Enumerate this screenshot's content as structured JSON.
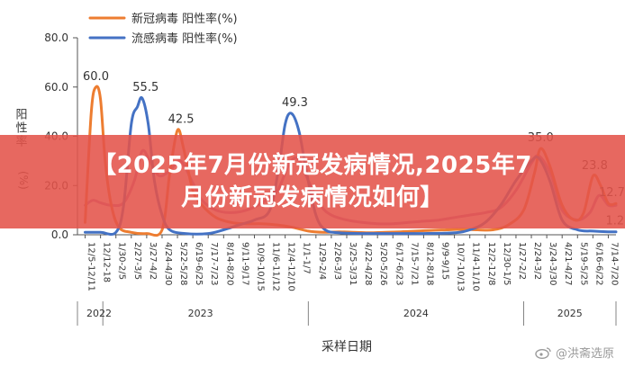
{
  "chart_data": {
    "type": "line",
    "xlabel": "采样日期",
    "ylabel": "阳性率(%)",
    "ylim": [
      0,
      80
    ],
    "yticks": [
      "0.0",
      "20.0",
      "40.0",
      "60.0",
      "80.0"
    ],
    "grid": false,
    "legend_position": "top-left",
    "x_ticks": [
      "12/5-12/11",
      "12/12-18",
      "1/30-2/5",
      "2/27-3/5",
      "3/27-4/2",
      "4/24-4/30",
      "5/22-5/28",
      "6/19-6/25",
      "7/17-7/23",
      "8/14-8/20",
      "9/11-9/17",
      "10/9-10/15",
      "11/6-11/12",
      "12/4-12/10",
      "1/1-1/7",
      "1/29-2/4",
      "2/26-3/3",
      "3/25-3/31",
      "4/22-4/28",
      "5/20-5/26",
      "6/17-6/23",
      "7/15-7/21",
      "8/12-8/18",
      "9/9-9/15",
      "10/7-10/13",
      "11/4-11/10",
      "12/2-12/8",
      "12/30-1/5",
      "1/27-2/2",
      "2/24-3/2",
      "3/24-3/30",
      "4/21-4/27",
      "5/19-5/25",
      "6/16-6/22",
      "7/14-7/20"
    ],
    "years": [
      "2022",
      "2023",
      "2024",
      "2025"
    ],
    "series": [
      {
        "name": "新冠病毒 阳性率(%)",
        "color": "#ED7D31",
        "peak_labels": [
          "60.0",
          "42.5",
          "35.0",
          "23.8",
          "12.7"
        ],
        "points": [
          [
            0,
            5
          ],
          [
            0.4,
            50
          ],
          [
            0.7,
            60
          ],
          [
            1.0,
            55
          ],
          [
            1.3,
            30
          ],
          [
            1.7,
            12
          ],
          [
            2.2,
            3
          ],
          [
            3,
            1
          ],
          [
            4,
            0.5
          ],
          [
            5,
            2
          ],
          [
            5.5,
            25
          ],
          [
            6.0,
            42.5
          ],
          [
            6.4,
            35
          ],
          [
            7,
            18
          ],
          [
            7.6,
            12
          ],
          [
            8.5,
            7
          ],
          [
            9.5,
            5
          ],
          [
            10.5,
            4.5
          ],
          [
            11.5,
            4.5
          ],
          [
            12.5,
            4
          ],
          [
            13.5,
            3
          ],
          [
            14.5,
            1.5
          ],
          [
            15.5,
            1
          ],
          [
            16.5,
            1.2
          ],
          [
            17.5,
            1
          ],
          [
            18.5,
            0.8
          ],
          [
            19.5,
            1
          ],
          [
            20.5,
            1.2
          ],
          [
            21.5,
            1.5
          ],
          [
            22.5,
            1.8
          ],
          [
            23.5,
            2
          ],
          [
            24.5,
            2.2
          ],
          [
            25.5,
            2
          ],
          [
            26.5,
            2
          ],
          [
            27.5,
            4
          ],
          [
            28.5,
            10
          ],
          [
            29.2,
            25
          ],
          [
            29.6,
            35
          ],
          [
            30.2,
            28
          ],
          [
            31.0,
            12
          ],
          [
            31.8,
            6
          ],
          [
            32.4,
            9
          ],
          [
            33.0,
            23.8
          ],
          [
            33.5,
            20
          ],
          [
            34.0,
            12.7
          ],
          [
            34.5,
            12.7
          ]
        ]
      },
      {
        "name": "流感病毒 阳性率(%)",
        "color": "#4472C4",
        "peak_labels": [
          "55.5",
          "49.3",
          "1.2"
        ],
        "points": [
          [
            0,
            1
          ],
          [
            1,
            1
          ],
          [
            2.0,
            1
          ],
          [
            2.5,
            12
          ],
          [
            3.0,
            45
          ],
          [
            3.4,
            52
          ],
          [
            3.7,
            55.5
          ],
          [
            4.1,
            45
          ],
          [
            4.5,
            22
          ],
          [
            5.0,
            8
          ],
          [
            5.5,
            2
          ],
          [
            6.5,
            0.5
          ],
          [
            8,
            0.5
          ],
          [
            9,
            2
          ],
          [
            10,
            4
          ],
          [
            11,
            6
          ],
          [
            12,
            10
          ],
          [
            12.6,
            28
          ],
          [
            13.0,
            45
          ],
          [
            13.4,
            49.3
          ],
          [
            13.9,
            42
          ],
          [
            14.4,
            25
          ],
          [
            15.0,
            8
          ],
          [
            15.6,
            2
          ],
          [
            16.5,
            0.8
          ],
          [
            18,
            0.5
          ],
          [
            20,
            0.5
          ],
          [
            22,
            0.5
          ],
          [
            24,
            0.8
          ],
          [
            25,
            2
          ],
          [
            26,
            5
          ],
          [
            27,
            12
          ],
          [
            28,
            22
          ],
          [
            29,
            30
          ],
          [
            29.5,
            31
          ],
          [
            30.2,
            22
          ],
          [
            31,
            6
          ],
          [
            32,
            2
          ],
          [
            33,
            1.5
          ],
          [
            34,
            1.2
          ],
          [
            34.5,
            1.2
          ]
        ]
      },
      {
        "name": "",
        "color": "#B06BB3",
        "peak_labels": [],
        "points": [
          [
            0,
            12
          ],
          [
            0.5,
            14
          ],
          [
            1,
            13
          ],
          [
            1.7,
            12
          ],
          [
            2.5,
            13
          ],
          [
            3.2,
            22
          ],
          [
            3.7,
            34
          ],
          [
            4.2,
            30
          ],
          [
            4.8,
            24
          ],
          [
            5.5,
            26
          ],
          [
            6.2,
            30
          ],
          [
            7,
            21
          ],
          [
            7.6,
            14
          ],
          [
            8.5,
            10
          ],
          [
            9.5,
            9
          ],
          [
            10.5,
            10
          ],
          [
            11.5,
            13
          ],
          [
            12.5,
            18
          ],
          [
            13.2,
            28
          ],
          [
            13.8,
            31
          ],
          [
            14.5,
            22
          ],
          [
            15.3,
            12
          ],
          [
            16,
            8
          ],
          [
            17,
            6
          ],
          [
            18,
            5
          ],
          [
            19,
            4.5
          ],
          [
            20,
            4.5
          ],
          [
            21,
            5
          ],
          [
            22,
            5.5
          ],
          [
            23,
            6
          ],
          [
            24,
            7
          ],
          [
            25,
            8
          ],
          [
            26,
            9
          ],
          [
            27,
            11
          ],
          [
            28,
            18
          ],
          [
            29,
            29
          ],
          [
            29.5,
            32
          ],
          [
            30.3,
            24
          ],
          [
            31,
            10
          ],
          [
            32,
            6
          ],
          [
            32.8,
            9
          ],
          [
            33.4,
            16
          ],
          [
            34,
            12
          ],
          [
            34.5,
            12
          ]
        ]
      }
    ]
  },
  "banner": {
    "line1": "【2025年7月份新冠发病情况,2025年7",
    "line2": "月份新冠发病情况如何】"
  },
  "watermark": {
    "text": "@洪斋选原"
  }
}
